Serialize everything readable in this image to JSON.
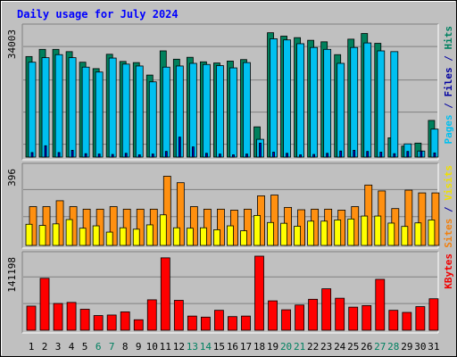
{
  "chart_data": {
    "title": "Daily usage for July 2024",
    "type": "bar",
    "categories": [
      "1",
      "2",
      "3",
      "4",
      "5",
      "6",
      "7",
      "8",
      "9",
      "10",
      "11",
      "12",
      "13",
      "14",
      "15",
      "16",
      "17",
      "18",
      "19",
      "20",
      "21",
      "22",
      "23",
      "24",
      "25",
      "26",
      "27",
      "28",
      "29",
      "30",
      "31"
    ],
    "weekend_days": [
      "6",
      "7",
      "13",
      "14",
      "20",
      "21",
      "27",
      "28"
    ],
    "panels": [
      {
        "name": "traffic",
        "ymax_label": "34003",
        "ymax": 34003,
        "legend": [
          {
            "text": "Pages",
            "color": "#00c0f0"
          },
          {
            "text": " / ",
            "color": "#0000a0"
          },
          {
            "text": "Files",
            "color": "#0000a0"
          },
          {
            "text": " / ",
            "color": "#0000a0"
          },
          {
            "text": "Hits",
            "color": "#008060"
          }
        ],
        "series": [
          {
            "name": "Hits",
            "color": "#00805c",
            "values": [
              26600,
              28500,
              28500,
              27900,
              25100,
              23400,
              27200,
              25300,
              25000,
              21700,
              28100,
              25900,
              26400,
              25200,
              24900,
              25400,
              25800,
              8000,
              32900,
              32000,
              31600,
              30900,
              30500,
              27100,
              31200,
              32700,
              30100,
              5100,
              2900,
              3700,
              9700
            ]
          },
          {
            "name": "Files",
            "color": "#00c0f0",
            "values": [
              25100,
              26300,
              27100,
              26300,
              23800,
              22500,
              26200,
              24600,
              24100,
              19900,
              23800,
              24100,
              24800,
              24500,
              24200,
              23600,
              25000,
              4700,
              31300,
              31000,
              30000,
              29000,
              28500,
              24800,
              29000,
              30200,
              28100,
              27900,
              3500,
              1600,
              7400
            ]
          },
          {
            "name": "Pages",
            "color": "#0000d0",
            "values": [
              1200,
              3000,
              1200,
              1800,
              900,
              800,
              700,
              1000,
              600,
              800,
              1500,
              5300,
              2700,
              1000,
              800,
              600,
              800,
              3700,
              1300,
              1000,
              600,
              700,
              1000,
              1600,
              1800,
              1500,
              1300,
              900,
              1500,
              1600,
              1100
            ]
          }
        ]
      },
      {
        "name": "visits",
        "ymax_label": "396",
        "ymax": 396,
        "legend": [
          {
            "text": "Sites",
            "color": "#f08010"
          },
          {
            "text": " / ",
            "color": "#0000a0"
          },
          {
            "text": "Visits",
            "color": "#f0e000"
          }
        ],
        "series": [
          {
            "name": "Visits",
            "color": "#ff9010",
            "values": [
              198,
              198,
              228,
              198,
              185,
              185,
              198,
              185,
              185,
              185,
              353,
              320,
              198,
              185,
              185,
              180,
              185,
              253,
              257,
              194,
              182,
              185,
              185,
              180,
              198,
              308,
              278,
              188,
              282,
              268,
              268
            ]
          },
          {
            "name": "Sites",
            "color": "#ffff00",
            "values": [
              108,
              102,
              110,
              132,
              88,
              100,
              68,
              90,
              83,
              105,
              156,
              90,
              88,
              90,
              80,
              100,
              75,
              153,
              117,
              113,
              98,
              124,
              124,
              130,
              135,
              150,
              150,
              114,
              97,
              115,
              130
            ]
          }
        ]
      },
      {
        "name": "kbytes",
        "ymax_label": "141198",
        "ymax": 141198,
        "legend": [
          {
            "text": "KBytes",
            "color": "#f00000"
          }
        ],
        "series": [
          {
            "name": "KBytes",
            "color": "#ff0000",
            "values": [
              46000,
              99000,
              51000,
              53000,
              40000,
              28000,
              29000,
              35000,
              20000,
              58000,
              138000,
              57000,
              27000,
              25000,
              38000,
              26000,
              27000,
              141198,
              56000,
              39000,
              48000,
              59000,
              79000,
              61000,
              44000,
              47000,
              97000,
              38000,
              34000,
              45000,
              60000
            ]
          }
        ]
      }
    ]
  },
  "colors": {
    "background": "#c0c0c0",
    "title": "#0000ff",
    "weekday_label": "#000000",
    "weekend_label": "#008060",
    "grid": "#808080"
  }
}
